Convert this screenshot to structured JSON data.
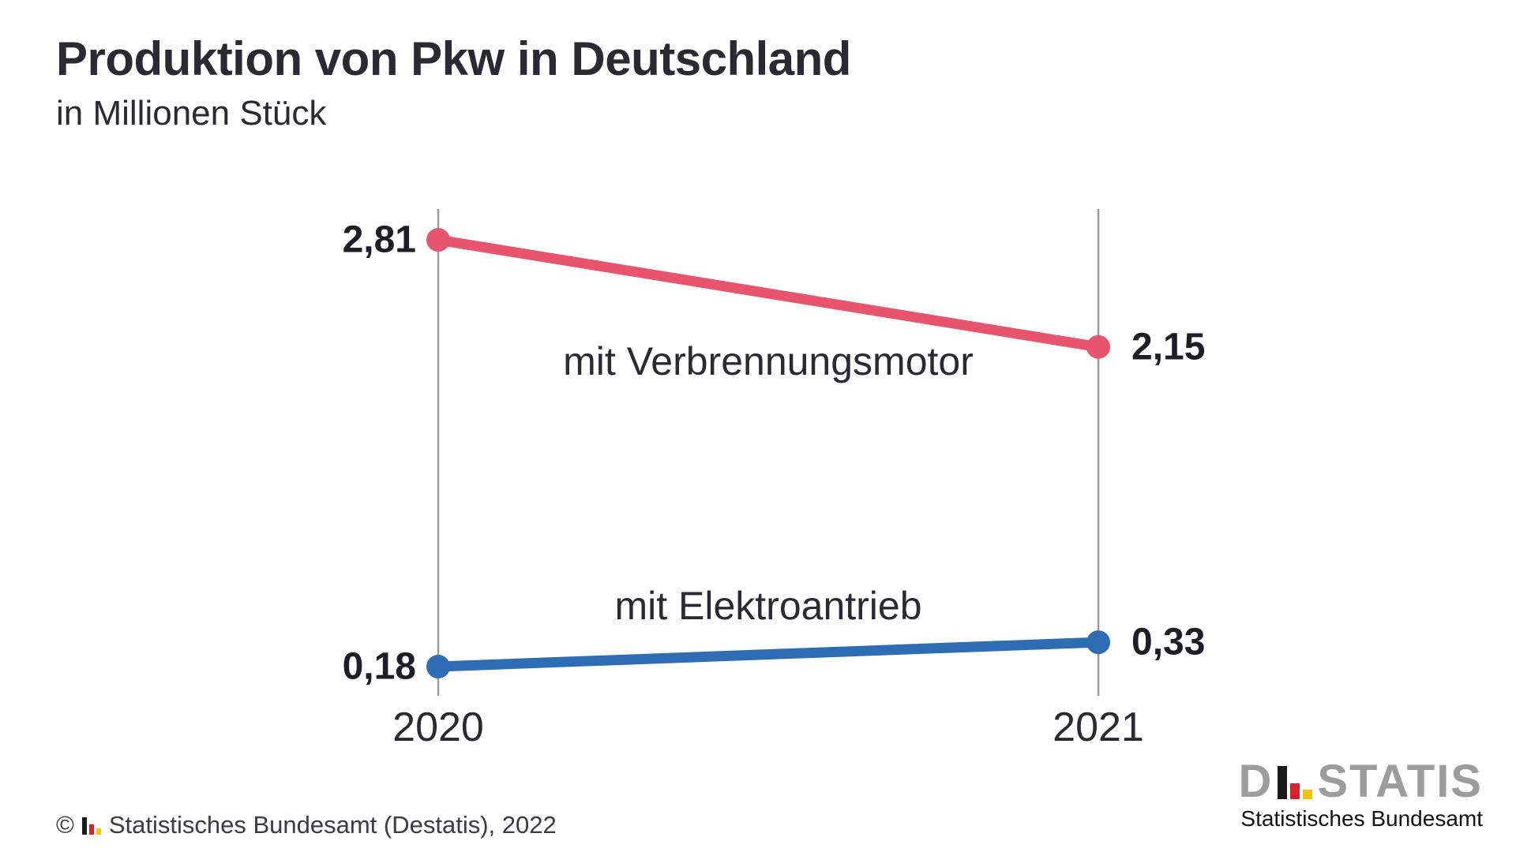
{
  "header": {
    "title": "Produktion von Pkw in Deutschland",
    "subtitle": "in Millionen Stück"
  },
  "chart_data": {
    "type": "line",
    "variant": "slope-chart",
    "title": "Produktion von Pkw in Deutschland",
    "unit_subtitle": "in Millionen Stück",
    "categories": [
      "2020",
      "2021"
    ],
    "series": [
      {
        "name": "mit Verbrennungsmotor",
        "values": [
          2.81,
          2.15
        ],
        "labels": [
          "2,81",
          "2,15"
        ],
        "color": "#e8536e"
      },
      {
        "name": "mit Elektroantrieb",
        "values": [
          0.18,
          0.33
        ],
        "labels": [
          "0,18",
          "0,33"
        ],
        "color": "#2e6db4"
      }
    ],
    "ylim": [
      0,
      3
    ],
    "grid": false,
    "legend": "inline-labels",
    "axis_color": "#9a9a9a",
    "xlabel": "",
    "ylabel": ""
  },
  "footer": {
    "copyright": "©",
    "source": "Statistisches Bundesamt (Destatis), 2022"
  },
  "logo": {
    "letter_d": "D",
    "letters_rest": "STATIS",
    "caption": "Statistisches Bundesamt",
    "wordmark_color": "#9c9c9c",
    "bar_colors": [
      "#1a1a1a",
      "#d5232e",
      "#f6c500"
    ]
  }
}
